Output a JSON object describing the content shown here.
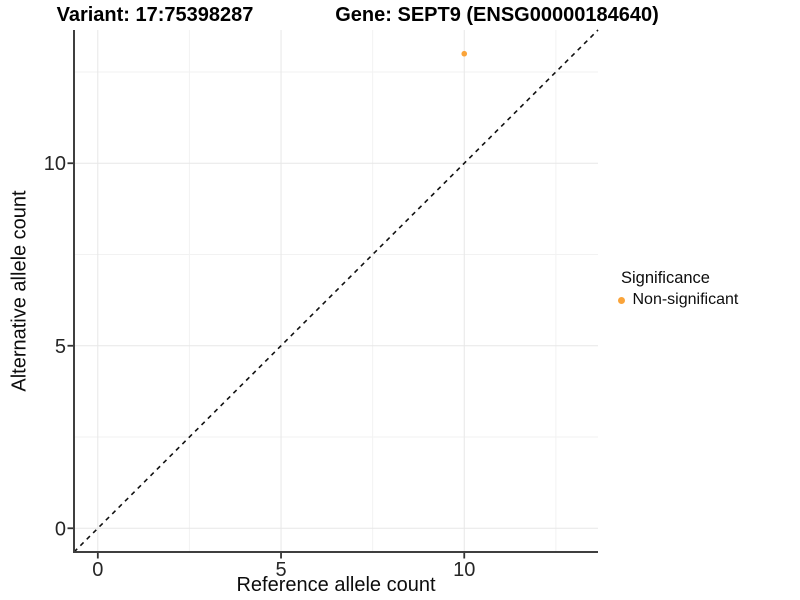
{
  "titles": {
    "variant": "Variant: 17:75398287",
    "gene": "Gene: SEPT9 (ENSG00000184640)"
  },
  "chart_data": {
    "type": "scatter",
    "title": "Variant: 17:75398287 / Gene: SEPT9 (ENSG00000184640)",
    "xlabel": "Reference allele count",
    "ylabel": "Alternative allele count",
    "xlim": [
      -0.65,
      13.65
    ],
    "ylim": [
      -0.65,
      13.65
    ],
    "x_ticks": [
      0,
      5,
      10
    ],
    "y_ticks": [
      0,
      5,
      10
    ],
    "x_minor_ticks": [
      2.5,
      7.5,
      12.5
    ],
    "y_minor_ticks": [
      2.5,
      7.5,
      12.5
    ],
    "grid": "major+minor",
    "points": [
      {
        "x": 10,
        "y": 13,
        "series": "Non-significant"
      }
    ],
    "identity_line": {
      "type": "y=x",
      "style": "dashed",
      "color": "#111111"
    },
    "legend": {
      "title": "Significance",
      "position": "right",
      "items": [
        {
          "label": "Non-significant",
          "color": "#FAA43A"
        }
      ]
    }
  },
  "colors": {
    "background": "#FFFFFF",
    "axis_line": "#3F3F3F",
    "tick_mark": "#333333",
    "grid_major": "#E7E7E7",
    "grid_minor": "#F2F2F2",
    "tick_label": "#262626"
  }
}
